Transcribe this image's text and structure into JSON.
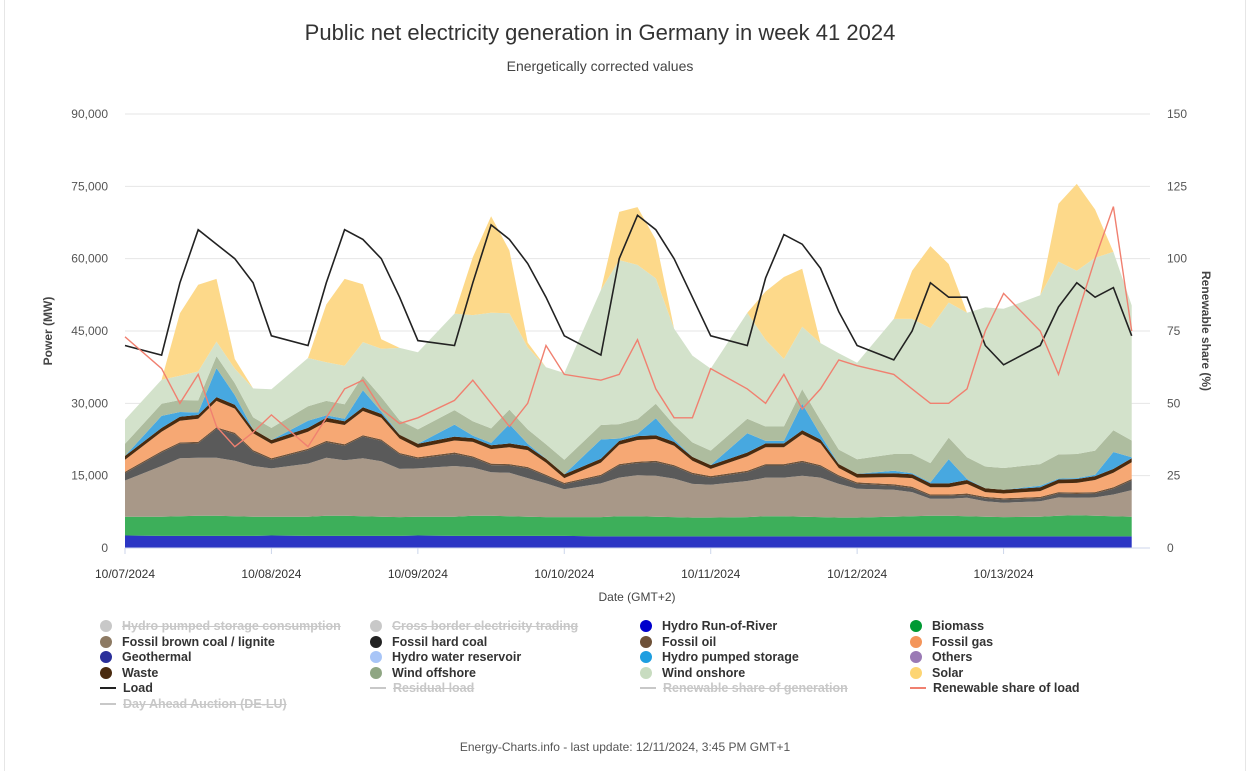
{
  "chart_data": {
    "type": "area",
    "title": "Public net electricity generation in Germany in week 41 2024",
    "subtitle": "Energetically corrected values",
    "xlabel": "Date (GMT+2)",
    "ylabel": "Power (MW)",
    "y2label": "Renewable share (%)",
    "ylim": [
      0,
      90000
    ],
    "y2lim": [
      0,
      150
    ],
    "yticks": [
      "0",
      "15,000",
      "30,000",
      "45,000",
      "60,000",
      "75,000",
      "90,000"
    ],
    "y2ticks": [
      "0",
      "25",
      "50",
      "75",
      "100",
      "125",
      "150"
    ],
    "xticks": [
      "10/07/2024",
      "10/08/2024",
      "10/09/2024",
      "10/10/2024",
      "10/11/2024",
      "10/12/2024",
      "10/13/2024"
    ],
    "hours": [
      0,
      6,
      9,
      12,
      15,
      18,
      21,
      24,
      30,
      33,
      36,
      39,
      42,
      45,
      48,
      54,
      57,
      60,
      63,
      66,
      69,
      72,
      78,
      81,
      84,
      87,
      90,
      93,
      96,
      102,
      105,
      108,
      111,
      114,
      117,
      120,
      126,
      129,
      132,
      135,
      138,
      141,
      144,
      150,
      153,
      156,
      159,
      162,
      165
    ],
    "series": [
      {
        "name": "Hydro Run-of-River",
        "values": [
          2600,
          2500,
          2500,
          2500,
          2500,
          2500,
          2500,
          2600,
          2500,
          2500,
          2500,
          2500,
          2500,
          2500,
          2600,
          2500,
          2500,
          2500,
          2500,
          2500,
          2500,
          2500,
          2400,
          2400,
          2400,
          2400,
          2400,
          2400,
          2400,
          2400,
          2400,
          2400,
          2400,
          2400,
          2400,
          2400,
          2400,
          2400,
          2400,
          2400,
          2400,
          2400,
          2400,
          2400,
          2400,
          2400,
          2400,
          2400,
          2400
        ]
      },
      {
        "name": "Biomass",
        "values": [
          3900,
          4000,
          4100,
          4200,
          4200,
          4100,
          4000,
          3900,
          4000,
          4200,
          4200,
          4100,
          4000,
          3900,
          3900,
          4000,
          4200,
          4200,
          4100,
          4000,
          3900,
          3900,
          4000,
          4200,
          4200,
          4100,
          4000,
          3900,
          3900,
          4000,
          4200,
          4200,
          4100,
          4000,
          3900,
          3900,
          4100,
          4200,
          4300,
          4300,
          4200,
          4100,
          4000,
          4100,
          4300,
          4400,
          4300,
          4200,
          4100
        ]
      },
      {
        "name": "Fossil brown coal / lignite",
        "values": [
          7500,
          10500,
          12000,
          12000,
          12000,
          11500,
          10500,
          10000,
          11000,
          12000,
          11500,
          12000,
          11500,
          10000,
          10000,
          10500,
          10000,
          9000,
          9000,
          8000,
          7000,
          5800,
          7000,
          8000,
          8500,
          8500,
          8000,
          7000,
          6800,
          7500,
          8000,
          8000,
          8500,
          8200,
          7000,
          6000,
          5600,
          5000,
          3500,
          3500,
          3800,
          3200,
          3000,
          3200,
          3800,
          3600,
          3800,
          4500,
          5500
        ]
      },
      {
        "name": "Fossil hard coal",
        "values": [
          1500,
          2800,
          3000,
          3000,
          6000,
          5500,
          3000,
          1800,
          2800,
          3200,
          3000,
          4500,
          4200,
          3000,
          2000,
          2500,
          2000,
          1500,
          1500,
          2000,
          1500,
          1000,
          1500,
          2500,
          2500,
          2800,
          2500,
          2000,
          1500,
          1800,
          2500,
          2500,
          2800,
          2300,
          1500,
          1000,
          800,
          800,
          600,
          600,
          600,
          600,
          600,
          600,
          800,
          800,
          800,
          1200,
          2000
        ]
      },
      {
        "name": "Fossil oil",
        "values": [
          300,
          300,
          300,
          300,
          300,
          300,
          300,
          300,
          300,
          300,
          300,
          300,
          300,
          300,
          300,
          300,
          300,
          300,
          300,
          300,
          300,
          300,
          300,
          300,
          300,
          300,
          300,
          300,
          300,
          300,
          300,
          300,
          300,
          300,
          300,
          300,
          300,
          300,
          300,
          300,
          300,
          300,
          300,
          300,
          300,
          300,
          300,
          300,
          300
        ]
      },
      {
        "name": "Fossil gas",
        "values": [
          2500,
          4000,
          4500,
          4800,
          5500,
          5000,
          3500,
          3000,
          3500,
          4000,
          4000,
          5000,
          4500,
          3000,
          2000,
          2500,
          3000,
          3000,
          3500,
          3500,
          2500,
          1000,
          2500,
          4000,
          4500,
          4500,
          4000,
          2500,
          1500,
          3000,
          3500,
          3500,
          5500,
          4500,
          1500,
          1000,
          1500,
          1800,
          1500,
          1500,
          2000,
          1000,
          1000,
          1200,
          1800,
          2000,
          2500,
          3000,
          3500
        ]
      },
      {
        "name": "Waste",
        "values": [
          800,
          800,
          800,
          800,
          800,
          800,
          800,
          800,
          800,
          800,
          800,
          800,
          800,
          800,
          800,
          800,
          800,
          800,
          800,
          800,
          800,
          800,
          800,
          800,
          800,
          800,
          800,
          800,
          800,
          800,
          800,
          800,
          800,
          800,
          800,
          800,
          800,
          800,
          800,
          800,
          800,
          800,
          800,
          800,
          800,
          800,
          800,
          800,
          800
        ]
      },
      {
        "name": "Hydro pumped storage",
        "values": [
          0,
          2500,
          1000,
          500,
          6000,
          2000,
          0,
          0,
          1500,
          500,
          500,
          3500,
          500,
          0,
          0,
          2500,
          500,
          500,
          4000,
          500,
          0,
          0,
          4000,
          500,
          500,
          3500,
          500,
          0,
          0,
          4000,
          500,
          500,
          5500,
          1000,
          0,
          0,
          500,
          200,
          200,
          5000,
          200,
          0,
          0,
          300,
          200,
          200,
          300,
          3500,
          200
        ]
      },
      {
        "name": "Wind onshore",
        "values": [
          5000,
          5000,
          5000,
          6000,
          3000,
          3000,
          6000,
          8000,
          10000,
          8000,
          8000,
          7000,
          10000,
          15000,
          16000,
          20000,
          22000,
          24000,
          20000,
          17000,
          16000,
          18000,
          28000,
          34000,
          32000,
          26000,
          20000,
          18000,
          17000,
          22000,
          18000,
          14000,
          13000,
          16000,
          20000,
          20000,
          28000,
          28000,
          28000,
          28000,
          30000,
          33000,
          33000,
          35000,
          40000,
          38000,
          40000,
          37000,
          28000
        ]
      },
      {
        "name": "Wind offshore",
        "values": [
          2500,
          2500,
          2500,
          2500,
          2500,
          2500,
          2500,
          2500,
          3000,
          3000,
          3000,
          3000,
          3000,
          3000,
          3000,
          3000,
          3000,
          3000,
          3000,
          3000,
          3000,
          3000,
          3000,
          3000,
          3000,
          3000,
          3000,
          3000,
          3000,
          3000,
          3000,
          3000,
          3000,
          3000,
          3000,
          3000,
          3500,
          4000,
          4000,
          4500,
          4500,
          4500,
          4500,
          4500,
          5000,
          5000,
          5000,
          4500,
          3500
        ]
      },
      {
        "name": "Solar",
        "values": [
          0,
          0,
          13000,
          18000,
          13000,
          2000,
          0,
          0,
          0,
          12000,
          18000,
          12000,
          2000,
          0,
          0,
          0,
          12000,
          20000,
          13000,
          1000,
          0,
          0,
          0,
          10000,
          12000,
          8000,
          0,
          0,
          0,
          0,
          10000,
          17000,
          12000,
          0,
          0,
          0,
          0,
          10000,
          17000,
          8000,
          0,
          0,
          0,
          0,
          12000,
          18000,
          10000,
          0,
          0
        ]
      },
      {
        "name": "Load",
        "values": [
          42000,
          40000,
          55000,
          66000,
          63000,
          60000,
          55000,
          44000,
          42000,
          55000,
          66000,
          64000,
          60000,
          52000,
          43000,
          42000,
          55000,
          67000,
          64000,
          59000,
          52000,
          44000,
          40000,
          60000,
          69000,
          66000,
          60000,
          52000,
          44000,
          42000,
          56000,
          65000,
          63000,
          58000,
          49000,
          42000,
          39000,
          45000,
          55000,
          52000,
          52000,
          42000,
          38000,
          42000,
          50000,
          55000,
          52000,
          54000,
          44000
        ]
      },
      {
        "name": "Renewable share of load",
        "values": [
          73,
          62,
          50,
          60,
          42,
          35,
          40,
          46,
          35,
          45,
          55,
          58,
          48,
          43,
          45,
          51,
          58,
          50,
          42,
          50,
          70,
          60,
          58,
          60,
          72,
          55,
          45,
          45,
          62,
          55,
          50,
          60,
          48,
          55,
          65,
          63,
          60,
          55,
          50,
          50,
          55,
          75,
          88,
          75,
          60,
          80,
          100,
          118,
          75
        ]
      }
    ]
  },
  "legend": [
    {
      "label": "Hydro pumped storage consumption",
      "color": "#c8c8c8",
      "marker": "dot",
      "hidden": true
    },
    {
      "label": "Cross border electricity trading",
      "color": "#c8c8c8",
      "marker": "dot",
      "hidden": true
    },
    {
      "label": "Hydro Run-of-River",
      "color": "#0000cc",
      "marker": "dot",
      "hidden": false
    },
    {
      "label": "Biomass",
      "color": "#009933",
      "marker": "dot",
      "hidden": false
    },
    {
      "label": "Fossil brown coal / lignite",
      "color": "#8d7a63",
      "marker": "dot",
      "hidden": false
    },
    {
      "label": "Fossil hard coal",
      "color": "#222222",
      "marker": "dot",
      "hidden": false
    },
    {
      "label": "Fossil oil",
      "color": "#6e5138",
      "marker": "dot",
      "hidden": false
    },
    {
      "label": "Fossil gas",
      "color": "#f4955a",
      "marker": "dot",
      "hidden": false
    },
    {
      "label": "Geothermal",
      "color": "#2a2f9a",
      "marker": "dot",
      "hidden": false
    },
    {
      "label": "Hydro water reservoir",
      "color": "#a8c5f7",
      "marker": "dot",
      "hidden": false
    },
    {
      "label": "Hydro pumped storage",
      "color": "#1e9ee0",
      "marker": "dot",
      "hidden": false
    },
    {
      "label": "Others",
      "color": "#9a7ab5",
      "marker": "dot",
      "hidden": false
    },
    {
      "label": "Waste",
      "color": "#4a2b0f",
      "marker": "dot",
      "hidden": false
    },
    {
      "label": "Wind offshore",
      "color": "#8fa683",
      "marker": "dot",
      "hidden": false
    },
    {
      "label": "Wind onshore",
      "color": "#c8dcc0",
      "marker": "dot",
      "hidden": false
    },
    {
      "label": "Solar",
      "color": "#fdd573",
      "marker": "dot",
      "hidden": false
    },
    {
      "label": "Load",
      "color": "#222222",
      "marker": "line",
      "hidden": false
    },
    {
      "label": "Residual load",
      "color": "#c8c8c8",
      "marker": "line",
      "hidden": true
    },
    {
      "label": "Renewable share of generation",
      "color": "#c8c8c8",
      "marker": "line",
      "hidden": true
    },
    {
      "label": "Renewable share of load",
      "color": "#f08070",
      "marker": "line",
      "hidden": false
    },
    {
      "label": "Day Ahead Auction (DE-LU)",
      "color": "#c8c8c8",
      "marker": "line",
      "hidden": true
    }
  ],
  "colors": {
    "Hydro Run-of-River": "#2b36c4",
    "Biomass": "#3daf5a",
    "Fossil brown coal / lignite": "#a89888",
    "Fossil hard coal": "#5a5a5a",
    "Fossil oil": "#6e5138",
    "Fossil gas": "#f6a874",
    "Waste": "#4a2b0f",
    "Hydro pumped storage": "#47a8e0",
    "Wind onshore": "#d3e2cb",
    "Wind offshore": "#aebd9f",
    "Solar": "#fdd98a",
    "Load": "#222222",
    "Renewable share of load": "#f08070"
  },
  "footer": "Energy-Charts.info - last update: 12/11/2024, 3:45 PM GMT+1"
}
